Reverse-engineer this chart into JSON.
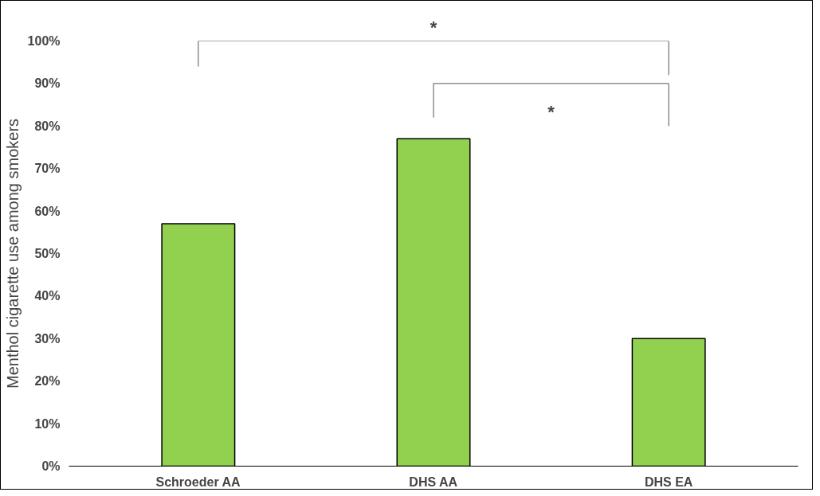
{
  "chart_data": {
    "type": "bar",
    "ylabel": "Menthol cigarette use among smokers",
    "categories": [
      "Schroeder AA",
      "DHS AA",
      "DHS EA"
    ],
    "values": [
      57,
      77,
      30
    ],
    "color": "#92d050",
    "ylim": [
      0,
      100
    ],
    "yticks": [
      {
        "value": 0,
        "label": "0%"
      },
      {
        "value": 10,
        "label": "10%"
      },
      {
        "value": 20,
        "label": "20%"
      },
      {
        "value": 30,
        "label": "30%"
      },
      {
        "value": 40,
        "label": "40%"
      },
      {
        "value": 50,
        "label": "50%"
      },
      {
        "value": 60,
        "label": "60%"
      },
      {
        "value": 70,
        "label": "70%"
      },
      {
        "value": 80,
        "label": "80%"
      },
      {
        "value": 90,
        "label": "90%"
      },
      {
        "value": 100,
        "label": "100%"
      }
    ],
    "grid": false,
    "annotations": [
      "*",
      "*"
    ]
  }
}
